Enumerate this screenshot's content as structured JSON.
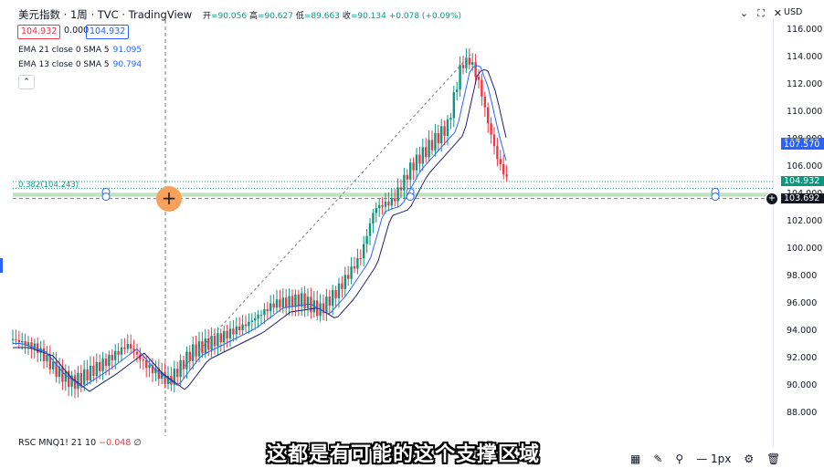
{
  "header": {
    "title": "美元指数 · 1周 · TVC · TradingView",
    "ohlc": [
      {
        "k": "开",
        "v": "=90.056"
      },
      {
        "k": "高",
        "v": "=90.627"
      },
      {
        "k": "低",
        "v": "=89.663"
      },
      {
        "k": "收",
        "v": "=90.134"
      },
      {
        "k": "",
        "v": "+0.078 (+0.09%)"
      }
    ],
    "currency": "USD",
    "icons": [
      "chevron-down-icon",
      "fullscreen-icon",
      "close-icon"
    ]
  },
  "pills": {
    "sell": "104.932",
    "spread": "0.000",
    "buy": "104.932"
  },
  "indicators": [
    {
      "label": "EMA 21 close 0 SMA 5",
      "value": "91.095"
    },
    {
      "label": "EMA 13 close 0 SMA 5",
      "value": "90.794"
    }
  ],
  "fib_label": "0.382(104.243)",
  "y_axis": {
    "ticks": [
      "116.000",
      "114.000",
      "112.000",
      "110.000",
      "108.000",
      "106.000",
      "104.000",
      "102.000",
      "100.000",
      "98.000",
      "96.000",
      "94.000",
      "92.000",
      "90.000",
      "88.000"
    ],
    "tags": [
      {
        "text": "107.763",
        "color": "#2962ff"
      },
      {
        "text": "107.570",
        "color": "#2962ff"
      },
      {
        "text": "104.932",
        "color": "#089981"
      },
      {
        "text": "103.692",
        "color": "#131722"
      }
    ]
  },
  "bottom": {
    "rsc": "RSC MNQ1! 21 10",
    "rsc_value": "−0.048",
    "rsc_suffix": "∅",
    "zoom": "1px"
  },
  "subtitle": "这都是有可能的这个支撑区域",
  "colors": {
    "up": "#089981",
    "down": "#f23645",
    "ema21": "#1e1e6e",
    "ema13": "#2962ff",
    "fib": "#a5d6a7"
  },
  "chart_data": {
    "type": "candlestick",
    "ylim": [
      87,
      117
    ],
    "y_ticks": [
      116,
      114,
      112,
      110,
      108,
      106,
      104,
      102,
      100,
      98,
      96,
      94,
      92,
      90,
      88
    ],
    "support_zone": [
      103.692,
      104.243
    ]
  }
}
